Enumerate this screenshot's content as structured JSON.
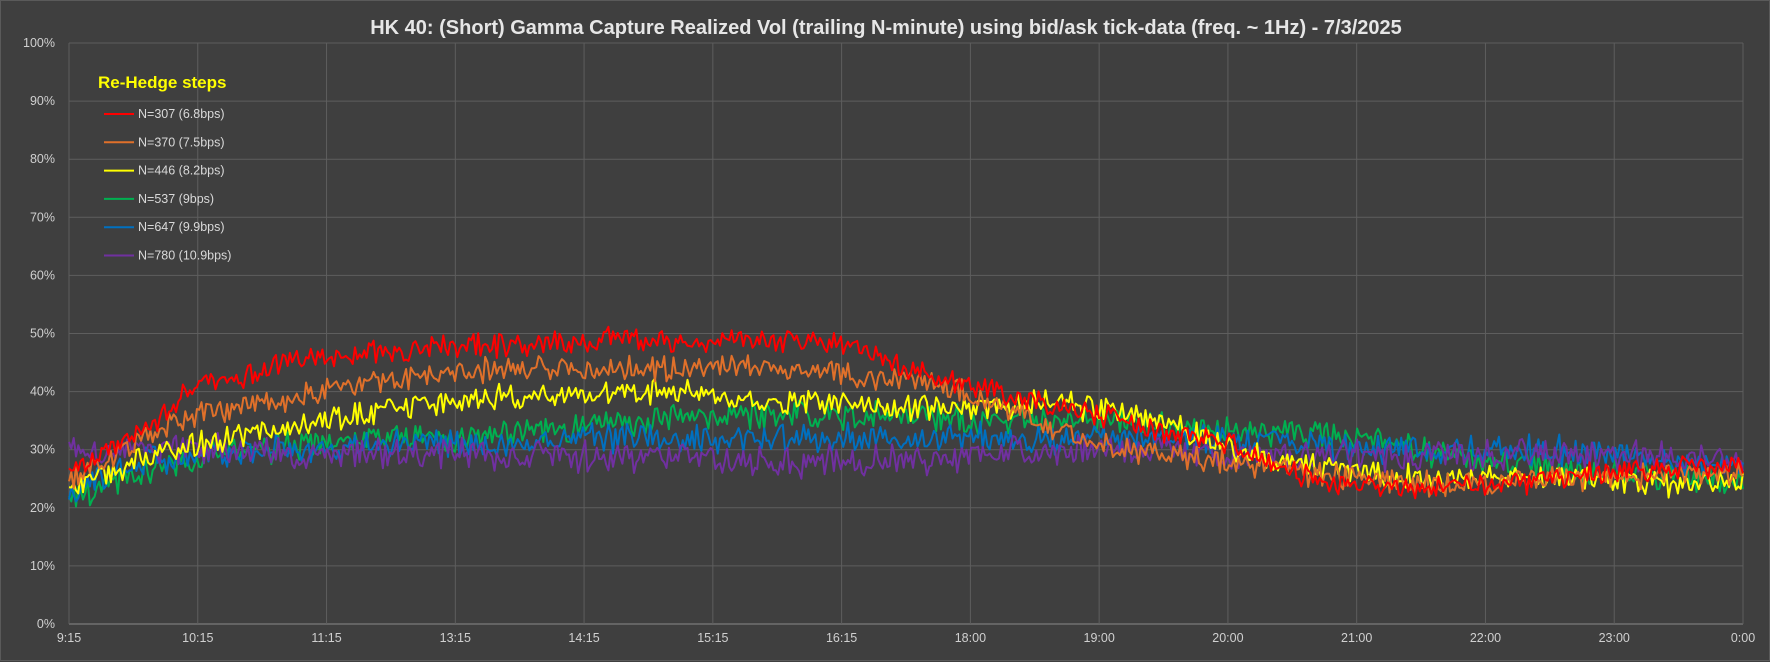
{
  "chart_data": {
    "type": "line",
    "title": "HK 40: (Short) Gamma Capture Realized Vol (trailing N-minute) using bid/ask tick-data (freq. ~ 1Hz) - 7/3/2025",
    "xlabel": "",
    "ylabel": "",
    "x_ticks": [
      "9:15",
      "10:15",
      "11:15",
      "13:15",
      "14:15",
      "15:15",
      "16:15",
      "18:00",
      "19:00",
      "20:00",
      "21:00",
      "22:00",
      "23:00",
      "0:00"
    ],
    "y_ticks": [
      "0%",
      "10%",
      "20%",
      "30%",
      "40%",
      "50%",
      "60%",
      "70%",
      "80%",
      "90%",
      "100%"
    ],
    "ylim": [
      0,
      100
    ],
    "grid": true,
    "legend": {
      "title": "Re-Hedge steps",
      "placement": "top-left"
    },
    "series": [
      {
        "name": "N=307 (6.8bps)",
        "color": "#ff0000",
        "points": [
          [
            0,
            26
          ],
          [
            0.3,
            30
          ],
          [
            0.6,
            34
          ],
          [
            1,
            41
          ],
          [
            1.3,
            42
          ],
          [
            1.6,
            45
          ],
          [
            2,
            46
          ],
          [
            2.5,
            47
          ],
          [
            3,
            48
          ],
          [
            3.5,
            48
          ],
          [
            4,
            49
          ],
          [
            4.5,
            49
          ],
          [
            5,
            49
          ],
          [
            5.5,
            49
          ],
          [
            6,
            48
          ],
          [
            6.2,
            47
          ],
          [
            6.5,
            44
          ],
          [
            7,
            41
          ],
          [
            7.5,
            38
          ],
          [
            8,
            36
          ],
          [
            8.5,
            33
          ],
          [
            9,
            31
          ],
          [
            9.5,
            26
          ],
          [
            10,
            24
          ],
          [
            10.5,
            23
          ],
          [
            11,
            24
          ],
          [
            11.5,
            25
          ],
          [
            12,
            26
          ],
          [
            12.5,
            27
          ],
          [
            13,
            27
          ],
          [
            13.5,
            26
          ],
          [
            14,
            26
          ]
        ]
      },
      {
        "name": "N=370 (7.5bps)",
        "color": "#e0702a",
        "points": [
          [
            0,
            25
          ],
          [
            0.3,
            29
          ],
          [
            0.7,
            33
          ],
          [
            1,
            36
          ],
          [
            1.5,
            38
          ],
          [
            2,
            40
          ],
          [
            2.5,
            42
          ],
          [
            3,
            43
          ],
          [
            3.5,
            44
          ],
          [
            4,
            44
          ],
          [
            4.5,
            44
          ],
          [
            5,
            44
          ],
          [
            5.5,
            44
          ],
          [
            6,
            43
          ],
          [
            6.5,
            42
          ],
          [
            7,
            40
          ],
          [
            7.5,
            35
          ],
          [
            8,
            31
          ],
          [
            8.5,
            29
          ],
          [
            9,
            28
          ],
          [
            9.5,
            26
          ],
          [
            10,
            25
          ],
          [
            10.5,
            24
          ],
          [
            11,
            24
          ],
          [
            11.5,
            25
          ],
          [
            12,
            25
          ],
          [
            12.5,
            26
          ],
          [
            13,
            26
          ],
          [
            13.5,
            25
          ],
          [
            14,
            25
          ]
        ]
      },
      {
        "name": "N=446 (8.2bps)",
        "color": "#ffff00",
        "points": [
          [
            0,
            23
          ],
          [
            0.3,
            26
          ],
          [
            0.7,
            29
          ],
          [
            1,
            31
          ],
          [
            1.5,
            33
          ],
          [
            2,
            35
          ],
          [
            2.5,
            37
          ],
          [
            3,
            38
          ],
          [
            3.5,
            39
          ],
          [
            4,
            40
          ],
          [
            4.5,
            40
          ],
          [
            5,
            39
          ],
          [
            5.5,
            38
          ],
          [
            6,
            38
          ],
          [
            6.5,
            37
          ],
          [
            7,
            37
          ],
          [
            7.5,
            38
          ],
          [
            8,
            37
          ],
          [
            8.5,
            35
          ],
          [
            9,
            30
          ],
          [
            9.5,
            28
          ],
          [
            10,
            26
          ],
          [
            10.5,
            25
          ],
          [
            11,
            25
          ],
          [
            11.5,
            25
          ],
          [
            12,
            25
          ],
          [
            12.5,
            24
          ],
          [
            13,
            24
          ],
          [
            13.5,
            23
          ],
          [
            14,
            23
          ]
        ]
      },
      {
        "name": "N=537 (9bps)",
        "color": "#00b050",
        "points": [
          [
            0,
            22
          ],
          [
            0.3,
            24
          ],
          [
            0.7,
            27
          ],
          [
            1,
            29
          ],
          [
            1.5,
            30
          ],
          [
            2,
            31
          ],
          [
            2.5,
            32
          ],
          [
            3,
            32
          ],
          [
            3.5,
            33
          ],
          [
            4,
            34
          ],
          [
            4.5,
            35
          ],
          [
            5,
            36
          ],
          [
            5.5,
            36
          ],
          [
            6,
            36
          ],
          [
            6.5,
            36
          ],
          [
            7,
            35
          ],
          [
            7.5,
            35
          ],
          [
            8,
            35
          ],
          [
            8.5,
            34
          ],
          [
            9,
            33
          ],
          [
            9.5,
            33
          ],
          [
            10,
            32
          ],
          [
            10.5,
            30
          ],
          [
            11,
            28
          ],
          [
            11.5,
            27
          ],
          [
            12,
            26
          ],
          [
            12.5,
            25
          ],
          [
            13,
            24
          ],
          [
            13.5,
            23
          ],
          [
            14,
            22
          ]
        ]
      },
      {
        "name": "N=647 (9.9bps)",
        "color": "#0070c0",
        "points": [
          [
            0,
            23
          ],
          [
            0.3,
            26
          ],
          [
            0.7,
            28
          ],
          [
            1,
            29
          ],
          [
            1.5,
            30
          ],
          [
            2,
            30
          ],
          [
            2.5,
            31
          ],
          [
            3,
            31
          ],
          [
            3.5,
            31
          ],
          [
            4,
            32
          ],
          [
            4.5,
            32
          ],
          [
            5,
            32
          ],
          [
            5.5,
            32
          ],
          [
            6,
            32
          ],
          [
            6.5,
            32
          ],
          [
            7,
            32
          ],
          [
            7.5,
            32
          ],
          [
            8,
            32
          ],
          [
            8.5,
            32
          ],
          [
            9,
            32
          ],
          [
            9.5,
            31
          ],
          [
            10,
            30
          ],
          [
            10.5,
            30
          ],
          [
            11,
            30
          ],
          [
            11.5,
            30
          ],
          [
            12,
            29
          ],
          [
            12.5,
            28
          ],
          [
            13,
            27
          ],
          [
            13.5,
            25
          ],
          [
            14,
            23
          ]
        ]
      },
      {
        "name": "N=780 (10.9bps)",
        "color": "#7030a0",
        "points": [
          [
            0,
            29
          ],
          [
            0.5,
            30
          ],
          [
            1,
            30
          ],
          [
            1.5,
            30
          ],
          [
            2,
            29
          ],
          [
            2.5,
            30
          ],
          [
            3,
            29
          ],
          [
            3.5,
            29
          ],
          [
            4,
            29
          ],
          [
            4.5,
            29
          ],
          [
            5,
            29
          ],
          [
            5.5,
            28
          ],
          [
            6,
            28
          ],
          [
            6.5,
            28
          ],
          [
            7,
            29
          ],
          [
            7.5,
            30
          ],
          [
            8,
            30
          ],
          [
            8.5,
            30
          ],
          [
            9,
            29
          ],
          [
            9.5,
            29
          ],
          [
            10,
            29
          ],
          [
            10.5,
            29
          ],
          [
            11,
            29
          ],
          [
            11.5,
            29
          ],
          [
            12,
            29
          ],
          [
            12.5,
            29
          ],
          [
            13,
            28
          ],
          [
            13.5,
            28
          ],
          [
            14,
            28
          ]
        ]
      }
    ]
  }
}
